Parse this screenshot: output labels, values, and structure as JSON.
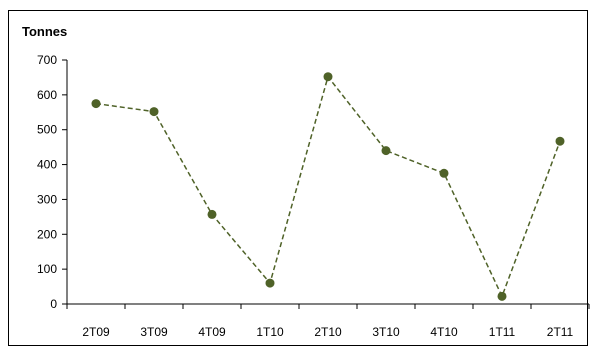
{
  "chart_data": {
    "type": "line",
    "ylabel": "Tonnes",
    "xlabel": "",
    "title": "",
    "categories": [
      "2T09",
      "3T09",
      "4T09",
      "1T10",
      "2T10",
      "3T10",
      "4T10",
      "1T11",
      "2T11"
    ],
    "series": [
      {
        "values": [
          575,
          552,
          257,
          60,
          652,
          440,
          375,
          22,
          467
        ],
        "color": "#4f6228",
        "line_style": "dashed",
        "marker": "circle"
      }
    ],
    "ylim": [
      0,
      700
    ],
    "yticks": [
      0,
      100,
      200,
      300,
      400,
      500,
      600,
      700
    ],
    "grid": false,
    "legend": "none"
  }
}
